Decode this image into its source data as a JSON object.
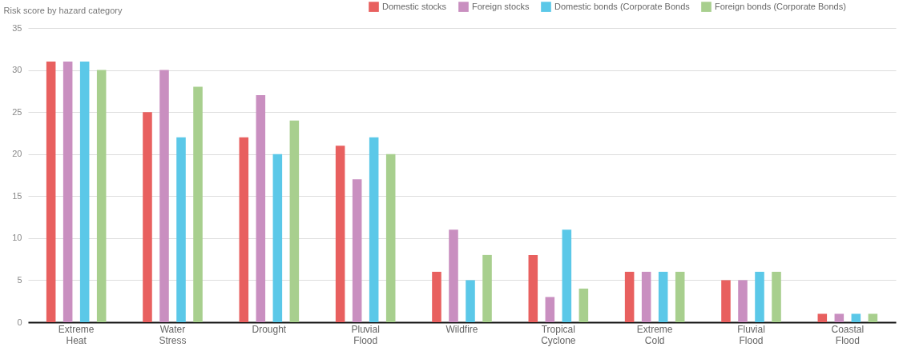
{
  "chart_data": {
    "type": "bar",
    "ylabel": "Risk score by hazard category",
    "categories": [
      "Extreme Heat",
      "Water Stress",
      "Drought",
      "Pluvial Flood",
      "Wildfire",
      "Tropical Cyclone",
      "Extreme Cold",
      "Fluvial Flood",
      "Coastal Flood"
    ],
    "series": [
      {
        "name": "Domestic stocks",
        "color": "#e8605f",
        "values": [
          31,
          25,
          22,
          21,
          6,
          8,
          6,
          5,
          1
        ]
      },
      {
        "name": "Foreign stocks",
        "color": "#c98fc0",
        "values": [
          31,
          30,
          27,
          17,
          11,
          3,
          6,
          5,
          1
        ]
      },
      {
        "name": "Domestic bonds (Corporate Bonds",
        "color": "#5bc8e8",
        "values": [
          31,
          22,
          20,
          22,
          5,
          11,
          6,
          6,
          1
        ]
      },
      {
        "name": "Foreign bonds (Corporate Bonds)",
        "color": "#a8cf8e",
        "values": [
          30,
          28,
          24,
          20,
          8,
          4,
          6,
          6,
          1
        ]
      }
    ],
    "ylim": [
      0,
      35
    ],
    "yticks": [
      0,
      5,
      10,
      15,
      20,
      25,
      30,
      35
    ],
    "grid": "y",
    "legend": "top right"
  }
}
